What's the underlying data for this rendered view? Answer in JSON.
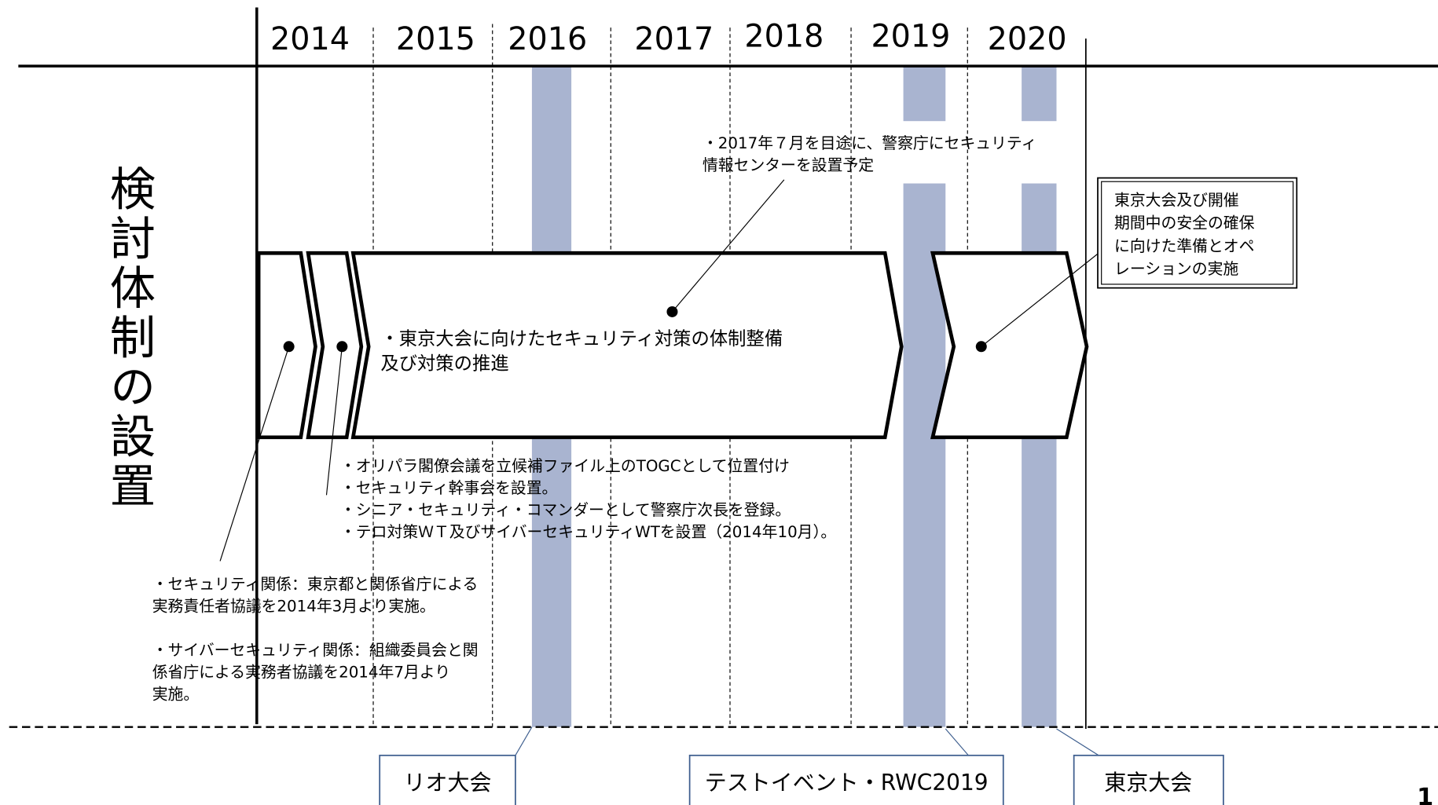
{
  "side_label": "検討体制の設置",
  "years": [
    "2014",
    "2015",
    "2016",
    "2017",
    "2018",
    "2019",
    "2020"
  ],
  "main_note": [
    "・東京大会に向けたセキュリティ対策の体制整備",
    "及び対策の推進"
  ],
  "top_note": [
    "・2017年７月を目途に、警察庁にセキュリティ",
    "情報センターを設置予定"
  ],
  "right_box": [
    "東京大会及び開催",
    "期間中の安全の確保",
    "に向けた準備とオペ",
    "レーションの実施"
  ],
  "middle_note": [
    "・オリパラ閣僚会議を立候補ファイル上のTOGCとして位置付け",
    "・セキュリティ幹事会を設置。",
    "・シニア・セキュリティ・コマンダーとして警察庁次長を登録。",
    "・テロ対策ＷＴ及びサイバーセキュリティWTを設置（2014年10月）。"
  ],
  "left_note": [
    "・セキュリティ関係：東京都と関係省庁による",
    "実務責任者協議を2014年3月より実施。",
    "",
    "・サイバーセキュリティ関係：組織委員会と関",
    "係省庁による実務者協議を2014年7月より",
    "実施。"
  ],
  "events": [
    "リオ大会",
    "テストイベント・RWC2019",
    "東京大会"
  ],
  "page_number": "1"
}
